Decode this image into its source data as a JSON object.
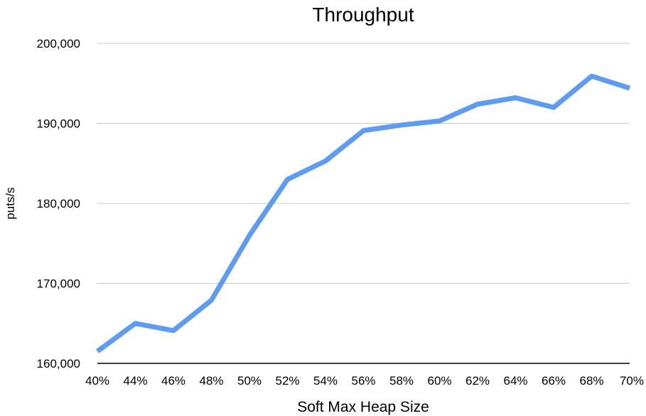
{
  "chart_data": {
    "type": "line",
    "title": "Throughput",
    "xlabel": "Soft Max Heap Size",
    "ylabel": "puts/s",
    "categories": [
      "40%",
      "44%",
      "46%",
      "48%",
      "50%",
      "52%",
      "54%",
      "56%",
      "58%",
      "60%",
      "62%",
      "64%",
      "66%",
      "68%",
      "70%"
    ],
    "series": [
      {
        "values": [
          161500,
          165000,
          164100,
          167900,
          176000,
          183000,
          185300,
          189100,
          189800,
          190300,
          192400,
          193200,
          192000,
          195900,
          194400
        ]
      }
    ],
    "ylim": [
      160000,
      200000
    ],
    "yticks": [
      160000,
      170000,
      180000,
      190000,
      200000
    ],
    "ytick_labels": [
      "160,000",
      "170,000",
      "180,000",
      "190,000",
      "200,000"
    ],
    "grid": true,
    "legend": "none",
    "line_color": "#5e9cf2"
  }
}
